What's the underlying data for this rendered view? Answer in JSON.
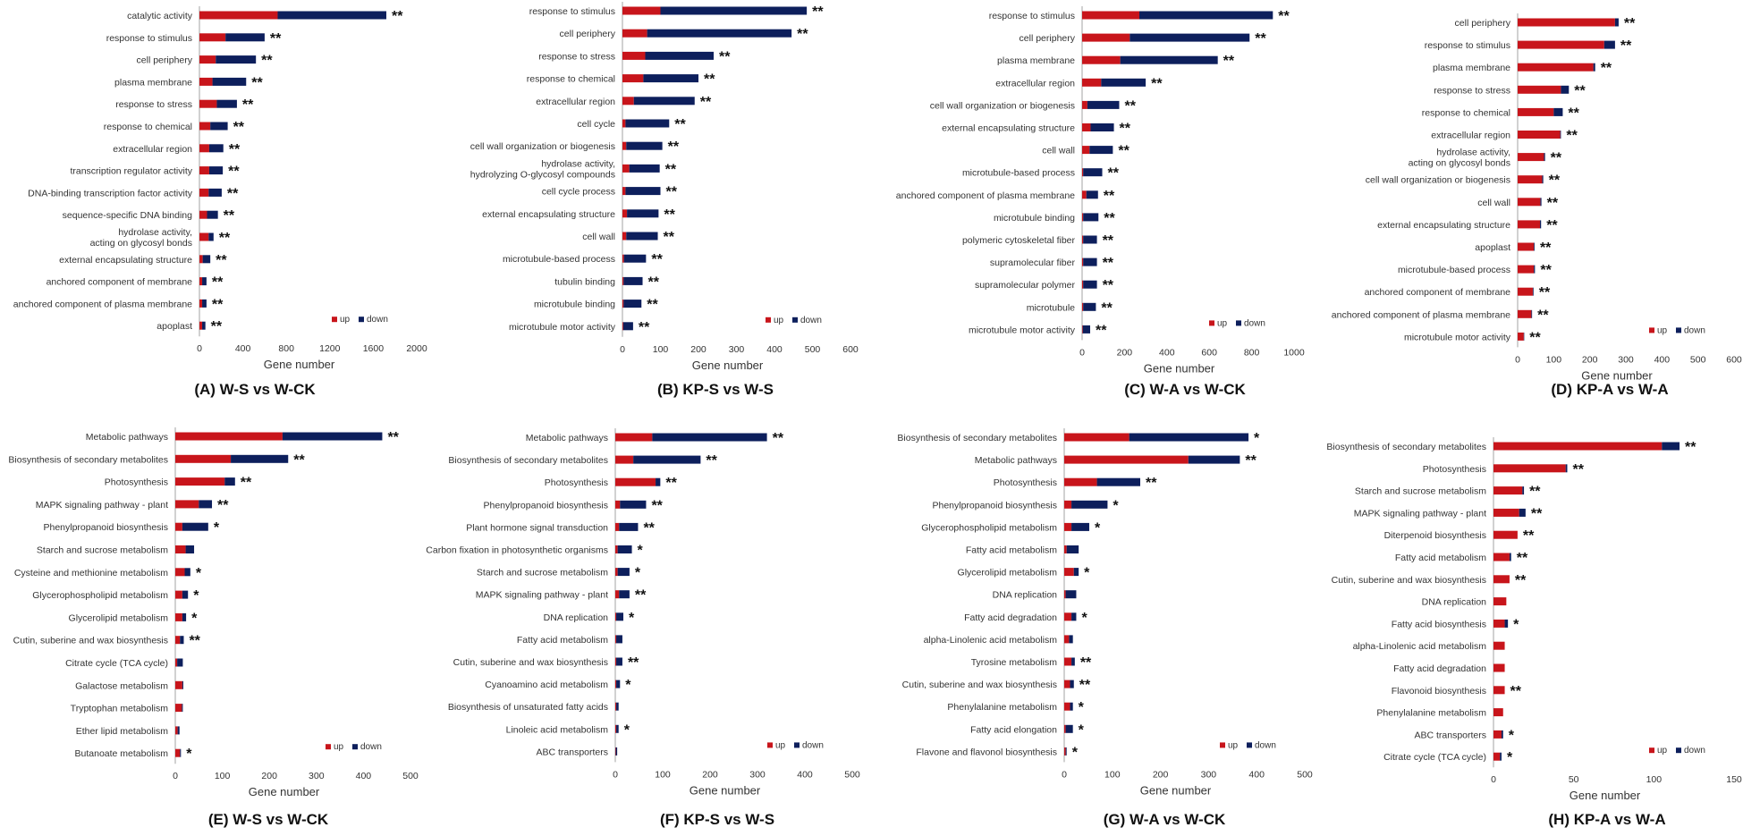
{
  "colors": {
    "up": "#c8151b",
    "down": "#0d1f5c",
    "axis": "#8c8c8c",
    "text": "#333333"
  },
  "chart_data": [
    {
      "type": "bar",
      "orientation": "horizontal",
      "stacked": true,
      "title": "(A)  W-S vs W-CK",
      "xlabel": "Gene number",
      "xlim": [
        0,
        2000
      ],
      "xticks": [
        0,
        400,
        800,
        1200,
        1600,
        2000
      ],
      "legend": {
        "up": "up",
        "down": "down",
        "position": "bottom-right"
      },
      "categories": [
        "catalytic activity",
        "response to stimulus",
        "cell periphery",
        "plasma membrane",
        "response to stress",
        "response to chemical",
        "extracellular region",
        "transcription regulator activity",
        "DNA-binding transcription factor activity",
        "sequence-specific DNA binding",
        "hydrolase activity, acting on glycosyl bonds",
        "external encapsulating structure",
        "anchored component of membrane",
        "anchored component of plasma membrane",
        "apoplast"
      ],
      "series": [
        {
          "name": "up",
          "values": [
            720,
            240,
            150,
            120,
            160,
            100,
            90,
            90,
            85,
            70,
            85,
            30,
            25,
            25,
            25
          ]
        },
        {
          "name": "down",
          "values": [
            1000,
            360,
            370,
            310,
            185,
            160,
            130,
            125,
            120,
            100,
            45,
            70,
            40,
            40,
            30
          ]
        }
      ],
      "significance": [
        "**",
        "**",
        "**",
        "**",
        "**",
        "**",
        "**",
        "**",
        "**",
        "**",
        "**",
        "**",
        "**",
        "**",
        "**"
      ]
    },
    {
      "type": "bar",
      "orientation": "horizontal",
      "stacked": true,
      "title": "(B)  KP-S vs W-S",
      "xlabel": "Gene number",
      "xlim": [
        0,
        600
      ],
      "xticks": [
        0,
        100,
        200,
        300,
        400,
        500,
        600
      ],
      "legend": {
        "up": "up",
        "down": "down",
        "position": "bottom-right"
      },
      "categories": [
        "response to stimulus",
        "cell periphery",
        "response to stress",
        "response to chemical",
        "extracellular region",
        "cell cycle",
        "cell wall organization or biogenesis",
        "hydrolase activity, hydrolyzing O-glycosyl compounds",
        "cell cycle process",
        "external encapsulating structure",
        "cell wall",
        "microtubule-based process",
        "tubulin binding",
        "microtubule binding",
        "microtubule motor activity"
      ],
      "series": [
        {
          "name": "up",
          "values": [
            100,
            65,
            60,
            55,
            30,
            8,
            10,
            18,
            8,
            12,
            10,
            4,
            3,
            3,
            2
          ]
        },
        {
          "name": "down",
          "values": [
            385,
            380,
            180,
            145,
            160,
            115,
            95,
            80,
            92,
            83,
            83,
            58,
            50,
            47,
            26
          ]
        }
      ],
      "significance": [
        "**",
        "**",
        "**",
        "**",
        "**",
        "**",
        "**",
        "**",
        "**",
        "**",
        "**",
        "**",
        "**",
        "**",
        "**"
      ]
    },
    {
      "type": "bar",
      "orientation": "horizontal",
      "stacked": true,
      "title": "(C)  W-A vs W-CK",
      "xlabel": "Gene number",
      "xlim": [
        0,
        1000
      ],
      "xticks": [
        0,
        200,
        400,
        600,
        800,
        1000
      ],
      "legend": {
        "up": "up",
        "down": "down",
        "position": "bottom-right"
      },
      "categories": [
        "response to stimulus",
        "cell periphery",
        "plasma membrane",
        "extracellular region",
        "cell wall organization or biogenesis",
        "external encapsulating structure",
        "cell wall",
        "microtubule-based process",
        "anchored component of plasma membrane",
        "microtubule binding",
        "polymeric cytoskeletal fiber",
        "supramolecular fiber",
        "supramolecular polymer",
        "microtubule",
        "microtubule motor activity"
      ],
      "series": [
        {
          "name": "up",
          "values": [
            270,
            225,
            180,
            90,
            25,
            40,
            35,
            5,
            20,
            5,
            5,
            5,
            5,
            5,
            3
          ]
        },
        {
          "name": "down",
          "values": [
            630,
            565,
            460,
            210,
            150,
            110,
            110,
            90,
            55,
            72,
            65,
            65,
            65,
            60,
            35
          ]
        }
      ],
      "significance": [
        "**",
        "**",
        "**",
        "**",
        "**",
        "**",
        "**",
        "**",
        "**",
        "**",
        "**",
        "**",
        "**",
        "**",
        "**"
      ]
    },
    {
      "type": "bar",
      "orientation": "horizontal",
      "stacked": true,
      "title": "(D)  KP-A vs W-A",
      "xlabel": "Gene number",
      "xlim": [
        0,
        600
      ],
      "xticks": [
        0,
        100,
        200,
        300,
        400,
        500,
        600
      ],
      "legend": {
        "up": "up",
        "down": "down",
        "position": "bottom-right"
      },
      "categories": [
        "cell periphery",
        "response to stimulus",
        "plasma membrane",
        "response to stress",
        "response to chemical",
        "extracellular region",
        "hydrolase activity, acting on glycosyl bonds",
        "cell wall organization or biogenesis",
        "cell wall",
        "external encapsulating structure",
        "apoplast",
        "microtubule-based process",
        "anchored component of membrane",
        "anchored component of plasma membrane",
        "microtubule motor activity"
      ],
      "series": [
        {
          "name": "up",
          "values": [
            270,
            240,
            210,
            120,
            100,
            118,
            73,
            68,
            63,
            62,
            45,
            45,
            42,
            38,
            17
          ]
        },
        {
          "name": "down",
          "values": [
            10,
            30,
            5,
            22,
            25,
            2,
            3,
            3,
            3,
            3,
            2,
            3,
            2,
            2,
            1
          ]
        }
      ],
      "significance": [
        "**",
        "**",
        "**",
        "**",
        "**",
        "**",
        "**",
        "**",
        "**",
        "**",
        "**",
        "**",
        "**",
        "**",
        "**"
      ]
    },
    {
      "type": "bar",
      "orientation": "horizontal",
      "stacked": true,
      "title": "(E)  W-S vs W-CK",
      "xlabel": "Gene number",
      "xlim": [
        0,
        500
      ],
      "xticks": [
        0,
        100,
        200,
        300,
        400,
        500
      ],
      "legend": {
        "up": "up",
        "down": "down",
        "position": "bottom-right"
      },
      "categories": [
        "Metabolic pathways",
        "Biosynthesis of secondary metabolites",
        "Photosynthesis",
        "MAPK signaling pathway - plant",
        "Phenylpropanoid biosynthesis",
        "Starch and sucrose metabolism",
        "Cysteine and methionine metabolism",
        "Glycerophospholipid metabolism",
        "Glycerolipid metabolism",
        "Cutin, suberine and wax biosynthesis",
        "Citrate cycle (TCA cycle)",
        "Galactose metabolism",
        "Tryptophan metabolism",
        "Ether lipid metabolism",
        "Butanoate metabolism"
      ],
      "series": [
        {
          "name": "up",
          "values": [
            228,
            118,
            105,
            50,
            15,
            22,
            20,
            15,
            15,
            10,
            4,
            15,
            14,
            5,
            10
          ]
        },
        {
          "name": "down",
          "values": [
            212,
            122,
            22,
            28,
            55,
            18,
            12,
            12,
            8,
            8,
            12,
            2,
            2,
            4,
            2
          ]
        }
      ],
      "significance": [
        "**",
        "**",
        "**",
        "**",
        "*",
        "",
        "*",
        "*",
        "*",
        "**",
        "",
        "",
        "",
        "",
        "*"
      ]
    },
    {
      "type": "bar",
      "orientation": "horizontal",
      "stacked": true,
      "title": "(F)  KP-S vs W-S",
      "xlabel": "Gene number",
      "xlim": [
        0,
        500
      ],
      "xticks": [
        0,
        100,
        200,
        300,
        400,
        500
      ],
      "legend": {
        "up": "up",
        "down": "down",
        "position": "bottom-right"
      },
      "categories": [
        "Metabolic pathways",
        "Biosynthesis of secondary metabolites",
        "Photosynthesis",
        "Phenylpropanoid biosynthesis",
        "Plant hormone signal transduction",
        "Carbon fixation in photosynthetic organisms",
        "Starch and sucrose metabolism",
        "MAPK signaling pathway - plant",
        "DNA replication",
        "Fatty acid metabolism",
        "Cutin, suberine and wax biosynthesis",
        "Cyanoamino acid metabolism",
        "Biosynthesis of unsaturated fatty acids",
        "Linoleic acid metabolism",
        "ABC transporters"
      ],
      "series": [
        {
          "name": "up",
          "values": [
            78,
            38,
            85,
            10,
            8,
            5,
            5,
            8,
            2,
            2,
            2,
            2,
            2,
            2,
            1
          ]
        },
        {
          "name": "down",
          "values": [
            242,
            142,
            10,
            55,
            40,
            30,
            25,
            22,
            15,
            13,
            13,
            8,
            5,
            5,
            3
          ]
        }
      ],
      "significance": [
        "**",
        "**",
        "**",
        "**",
        "**",
        "*",
        "*",
        "**",
        "*",
        "",
        "**",
        "*",
        "",
        "*",
        ""
      ]
    },
    {
      "type": "bar",
      "orientation": "horizontal",
      "stacked": true,
      "title": "(G)  W-A vs W-CK",
      "xlabel": "Gene number",
      "xlim": [
        0,
        500
      ],
      "xticks": [
        0,
        100,
        200,
        300,
        400,
        500
      ],
      "legend": {
        "up": "up",
        "down": "down",
        "position": "bottom-right"
      },
      "categories": [
        "Biosynthesis of secondary metabolites",
        "Metabolic pathways",
        "Photosynthesis",
        "Phenylpropanoid biosynthesis",
        "Glycerophospholipid metabolism",
        "Fatty acid metabolism",
        "Glycerolipid metabolism",
        "DNA replication",
        "Fatty acid degradation",
        "alpha-Linolenic acid metabolism",
        "Tyrosine metabolism",
        "Cutin, suberine and wax biosynthesis",
        "Phenylalanine metabolism",
        "Fatty acid elongation",
        "Flavone and flavonol biosynthesis"
      ],
      "series": [
        {
          "name": "up",
          "values": [
            135,
            258,
            68,
            15,
            15,
            5,
            20,
            3,
            15,
            10,
            15,
            12,
            12,
            3,
            3
          ]
        },
        {
          "name": "down",
          "values": [
            248,
            107,
            90,
            75,
            37,
            25,
            10,
            22,
            10,
            8,
            7,
            8,
            6,
            15,
            2
          ]
        }
      ],
      "significance": [
        "*",
        "**",
        "**",
        "*",
        "*",
        "",
        "*",
        "",
        "*",
        "",
        "**",
        "**",
        "*",
        "*",
        "*"
      ]
    },
    {
      "type": "bar",
      "orientation": "horizontal",
      "stacked": true,
      "title": "(H) KP-A vs W-A",
      "xlabel": "Gene number",
      "xlim": [
        0,
        150
      ],
      "xticks": [
        0,
        50,
        100,
        150
      ],
      "legend": {
        "up": "up",
        "down": "down",
        "position": "bottom-right"
      },
      "categories": [
        "Biosynthesis of secondary metabolites",
        "Photosynthesis",
        "Starch and sucrose metabolism",
        "MAPK signaling pathway - plant",
        "Diterpenoid biosynthesis",
        "Fatty acid metabolism",
        "Cutin, suberine and wax biosynthesis",
        "DNA replication",
        "Fatty acid biosynthesis",
        "alpha-Linolenic acid metabolism",
        "Fatty acid degradation",
        "Flavonoid biosynthesis",
        "Phenylalanine metabolism",
        "ABC transporters",
        "Citrate cycle (TCA cycle)"
      ],
      "series": [
        {
          "name": "up",
          "values": [
            105,
            45,
            18,
            16,
            15,
            10,
            10,
            8,
            7,
            7,
            7,
            7,
            6,
            5,
            4
          ]
        },
        {
          "name": "down",
          "values": [
            11,
            1,
            1,
            4,
            0,
            1,
            0,
            0,
            2,
            0,
            0,
            0,
            0,
            1,
            1
          ]
        }
      ],
      "significance": [
        "**",
        "**",
        "**",
        "**",
        "**",
        "**",
        "**",
        "",
        "*",
        "",
        "",
        "**",
        "",
        "*",
        "*"
      ]
    }
  ]
}
